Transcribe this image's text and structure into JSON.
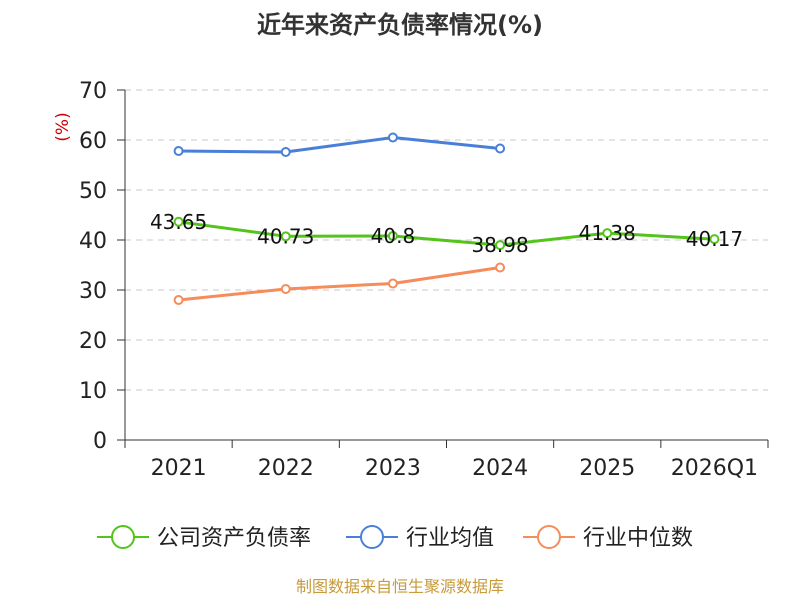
{
  "chart_data": {
    "type": "line",
    "title": "近年来资产负债率情况(%)",
    "ylabel": "(%)",
    "xlabel": "",
    "categories": [
      "2021",
      "2022",
      "2023",
      "2024",
      "2025",
      "2026Q1"
    ],
    "ylim": [
      0,
      70
    ],
    "yticks": [
      0,
      10,
      20,
      30,
      40,
      50,
      60,
      70
    ],
    "grid": true,
    "legend_position": "bottom",
    "series": [
      {
        "name": "公司资产负债率",
        "color": "#52c41a",
        "values": [
          43.65,
          40.73,
          40.8,
          38.98,
          41.38,
          40.17
        ],
        "labels": [
          "43.65",
          "40.73",
          "40.8",
          "38.98",
          "41.38",
          "40.17"
        ]
      },
      {
        "name": "行业均值",
        "color": "#4a7fd9",
        "values": [
          57.8,
          57.6,
          60.5,
          58.3,
          null,
          null
        ]
      },
      {
        "name": "行业中位数",
        "color": "#f58c5a",
        "values": [
          28.0,
          30.2,
          31.3,
          34.5,
          null,
          null
        ]
      }
    ]
  },
  "source_text": "制图数据来自恒生聚源数据库"
}
